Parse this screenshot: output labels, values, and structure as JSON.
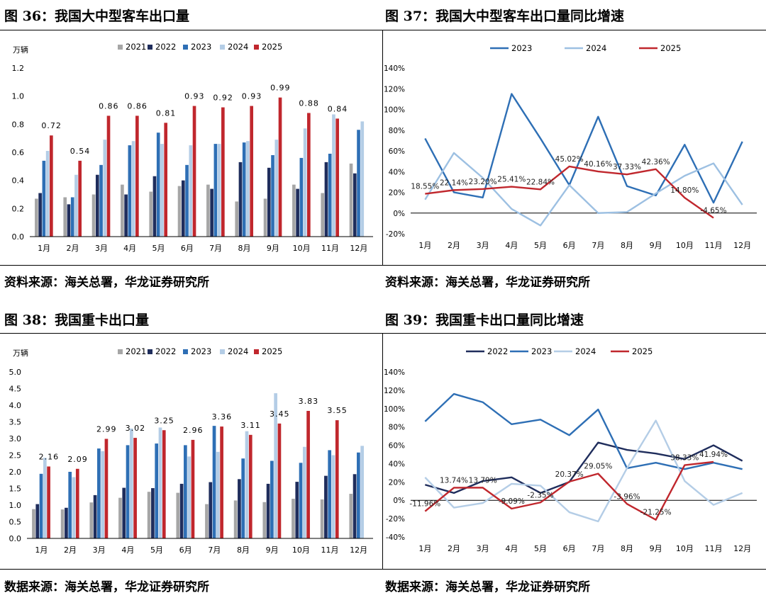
{
  "panels": {
    "p36": {
      "title": "图 36：我国大中型客车出口量",
      "source": "资料来源：海关总署，华龙证券研究所"
    },
    "p37": {
      "title": "图 37：我国大中型客车出口量同比增速",
      "source": "资料来源：海关总署，华龙证券研究所"
    },
    "p38": {
      "title": "图 38：我国重卡出口量",
      "source": "数据来源：海关总署，华龙证券研究所"
    },
    "p39": {
      "title": "图 39：我国重卡出口量同比增速",
      "source": "数据来源：海关总署，华龙证券研究所"
    }
  },
  "chart_data": [
    {
      "id": "c36",
      "type": "bar",
      "unit_label": "万辆",
      "categories": [
        "1月",
        "2月",
        "3月",
        "4月",
        "5月",
        "6月",
        "7月",
        "8月",
        "9月",
        "10月",
        "11月",
        "12月"
      ],
      "ylim": [
        0,
        1.2
      ],
      "yticks": [
        0.0,
        0.2,
        0.4,
        0.6,
        0.8,
        1.0,
        1.2
      ],
      "tick_labels": [
        "0.0",
        "0.2",
        "0.4",
        "0.6",
        "0.8",
        "1.0",
        "1.2"
      ],
      "legend_position": "top",
      "series": [
        {
          "name": "2021",
          "color": "#a6a6a6",
          "values": [
            0.27,
            0.28,
            0.3,
            0.37,
            0.32,
            0.36,
            0.37,
            0.25,
            0.27,
            0.37,
            0.31,
            0.52
          ]
        },
        {
          "name": "2022",
          "color": "#1f2d5c",
          "values": [
            0.31,
            0.23,
            0.44,
            0.3,
            0.43,
            0.4,
            0.34,
            0.53,
            0.49,
            0.34,
            0.53,
            0.45
          ]
        },
        {
          "name": "2023",
          "color": "#2e6fb5",
          "values": [
            0.54,
            0.28,
            0.51,
            0.65,
            0.74,
            0.51,
            0.66,
            0.67,
            0.58,
            0.56,
            0.59,
            0.76
          ]
        },
        {
          "name": "2024",
          "color": "#b4cde6",
          "values": [
            0.61,
            0.44,
            0.69,
            0.68,
            0.66,
            0.65,
            0.66,
            0.68,
            0.69,
            0.77,
            0.87,
            0.82
          ]
        },
        {
          "name": "2025",
          "color": "#c0272d",
          "values": [
            0.72,
            0.54,
            0.86,
            0.86,
            0.81,
            0.93,
            0.92,
            0.93,
            0.99,
            0.88,
            0.84,
            null
          ],
          "labels": [
            "0.72",
            "0.54",
            "0.86",
            "0.86",
            "0.81",
            "0.93",
            "0.92",
            "0.93",
            "0.99",
            "0.88",
            "0.84",
            ""
          ]
        }
      ]
    },
    {
      "id": "c37",
      "type": "line",
      "categories": [
        "1月",
        "2月",
        "3月",
        "4月",
        "5月",
        "6月",
        "7月",
        "8月",
        "9月",
        "10月",
        "11月",
        "12月"
      ],
      "ylim": [
        -0.2,
        1.4
      ],
      "yticks": [
        -0.2,
        0,
        0.2,
        0.4,
        0.6,
        0.8,
        1.0,
        1.2,
        1.4
      ],
      "tick_labels": [
        "-20%",
        "0%",
        "20%",
        "40%",
        "60%",
        "80%",
        "100%",
        "120%",
        "140%"
      ],
      "legend_position": "top",
      "series": [
        {
          "name": "2023",
          "color": "#2e6fb5",
          "values": [
            0.72,
            0.2,
            0.15,
            1.15,
            0.72,
            0.27,
            0.93,
            0.26,
            0.17,
            0.66,
            0.1,
            0.69
          ]
        },
        {
          "name": "2024",
          "color": "#9dc0e2",
          "values": [
            0.13,
            0.58,
            0.34,
            0.04,
            -0.12,
            0.27,
            0.0,
            0.01,
            0.19,
            0.36,
            0.48,
            0.08
          ]
        },
        {
          "name": "2025",
          "color": "#c0272d",
          "values": [
            0.1855,
            0.2214,
            0.232,
            0.2541,
            0.2284,
            0.4502,
            0.4016,
            0.3733,
            0.4236,
            0.148,
            -0.0465,
            null
          ],
          "labels": [
            "18.55%",
            "22.14%",
            "23.20%",
            "25.41%",
            "22.84%",
            "45.02%",
            "40.16%",
            "37.33%",
            "42.36%",
            "14.80%",
            "-4.65%",
            ""
          ]
        }
      ]
    },
    {
      "id": "c38",
      "type": "bar",
      "unit_label": "万辆",
      "categories": [
        "1月",
        "2月",
        "3月",
        "4月",
        "5月",
        "6月",
        "7月",
        "8月",
        "9月",
        "10月",
        "11月",
        "12月"
      ],
      "ylim": [
        0,
        5.0
      ],
      "yticks": [
        0,
        0.5,
        1.0,
        1.5,
        2.0,
        2.5,
        3.0,
        3.5,
        4.0,
        4.5,
        5.0
      ],
      "tick_labels": [
        "0.0",
        "0.5",
        "1.0",
        "1.5",
        "2.0",
        "2.5",
        "3.0",
        "3.5",
        "4.0",
        "4.5",
        "5.0"
      ],
      "legend_position": "top",
      "series": [
        {
          "name": "2021",
          "color": "#a6a6a6",
          "values": [
            0.88,
            0.87,
            1.08,
            1.22,
            1.4,
            1.37,
            1.03,
            1.14,
            1.09,
            1.19,
            1.17,
            1.34
          ]
        },
        {
          "name": "2022",
          "color": "#1f2d5c",
          "values": [
            1.03,
            0.92,
            1.3,
            1.52,
            1.51,
            1.64,
            1.69,
            1.78,
            1.64,
            1.7,
            1.88,
            1.93
          ]
        },
        {
          "name": "2023",
          "color": "#2e6fb5",
          "values": [
            1.94,
            2.0,
            2.7,
            2.8,
            2.85,
            2.8,
            3.38,
            2.4,
            2.33,
            2.27,
            2.65,
            2.58
          ]
        },
        {
          "name": "2024",
          "color": "#b4cde6",
          "values": [
            2.42,
            1.84,
            2.62,
            3.3,
            3.33,
            2.46,
            2.6,
            3.22,
            4.36,
            2.75,
            2.5,
            2.78
          ]
        },
        {
          "name": "2025",
          "color": "#c0272d",
          "values": [
            2.16,
            2.09,
            2.99,
            3.02,
            3.25,
            2.96,
            3.36,
            3.11,
            3.45,
            3.83,
            3.55,
            null
          ],
          "labels": [
            "2.16",
            "2.09",
            "2.99",
            "3.02",
            "3.25",
            "2.96",
            "3.36",
            "3.11",
            "3.45",
            "3.83",
            "3.55",
            ""
          ]
        }
      ]
    },
    {
      "id": "c39",
      "type": "line",
      "categories": [
        "1月",
        "2月",
        "3月",
        "4月",
        "5月",
        "6月",
        "7月",
        "8月",
        "9月",
        "10月",
        "11月",
        "12月"
      ],
      "ylim": [
        -0.4,
        1.4
      ],
      "yticks": [
        -0.4,
        -0.2,
        0,
        0.2,
        0.4,
        0.6,
        0.8,
        1.0,
        1.2,
        1.4
      ],
      "tick_labels": [
        "-40%",
        "-20%",
        "0%",
        "20%",
        "40%",
        "60%",
        "80%",
        "100%",
        "120%",
        "140%"
      ],
      "legend_position": "top",
      "series": [
        {
          "name": "2022",
          "color": "#1f2d5c",
          "values": [
            0.17,
            0.08,
            0.21,
            0.25,
            0.08,
            0.2,
            0.63,
            0.55,
            0.51,
            0.45,
            0.6,
            0.43
          ]
        },
        {
          "name": "2023",
          "color": "#2e6fb5",
          "values": [
            0.86,
            1.16,
            1.07,
            0.83,
            0.88,
            0.71,
            0.99,
            0.35,
            0.41,
            0.34,
            0.41,
            0.34
          ]
        },
        {
          "name": "2024",
          "color": "#b4cde6",
          "values": [
            0.25,
            -0.08,
            -0.03,
            0.18,
            0.16,
            -0.13,
            -0.23,
            0.35,
            0.87,
            0.21,
            -0.05,
            0.08
          ]
        },
        {
          "name": "2025",
          "color": "#c0272d",
          "values": [
            -0.1196,
            0.1374,
            0.1379,
            -0.0909,
            -0.0235,
            0.2037,
            0.2905,
            -0.0396,
            -0.2125,
            0.3833,
            0.4194,
            null
          ],
          "labels": [
            "-11.96%",
            "13.74%",
            "13.79%",
            "-9.09%",
            "-2.35%",
            "20.37%",
            "29.05%",
            "-3.96%",
            "-21.25%",
            "38.33%",
            "41.94%",
            ""
          ]
        }
      ]
    }
  ]
}
